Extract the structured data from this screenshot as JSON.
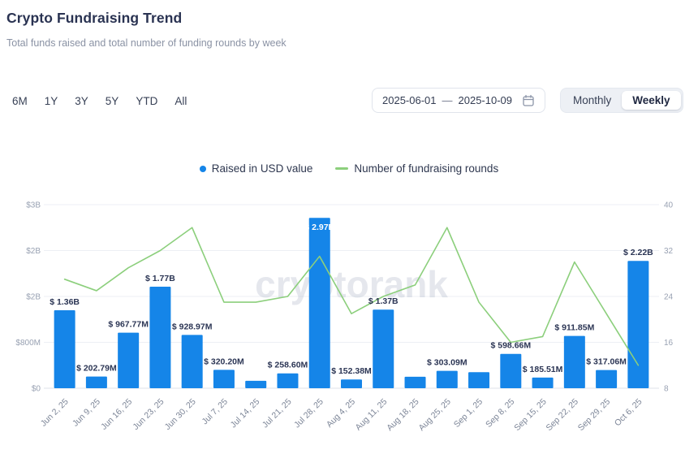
{
  "header": {
    "title": "Crypto Fundraising Trend",
    "subtitle": "Total funds raised and total number of funding rounds by week"
  },
  "controls": {
    "ranges": [
      "6M",
      "1Y",
      "3Y",
      "5Y",
      "YTD",
      "All"
    ],
    "date_range": {
      "start": "2025-06-01",
      "separator": "—",
      "end": "2025-10-09"
    },
    "granularity": {
      "options": [
        "Monthly",
        "Weekly"
      ],
      "selected": "Weekly"
    }
  },
  "legend": [
    {
      "label": "Raised in USD value",
      "color": "#1585e8"
    },
    {
      "label": "Number of fundraising rounds",
      "color": "#8ccf7c"
    }
  ],
  "watermark": {
    "text": "cryptorank",
    "color": "#aab3c5"
  },
  "chart_data": {
    "type": "bar+line dual-axis",
    "categories": [
      "Jun 2, 25",
      "Jun 9, 25",
      "Jun 16, 25",
      "Jun 23, 25",
      "Jun 30, 25",
      "Jul 7, 25",
      "Jul 14, 25",
      "Jul 21, 25",
      "Jul 28, 25",
      "Aug 4, 25",
      "Aug 11, 25",
      "Aug 18, 25",
      "Aug 25, 25",
      "Sep 1, 25",
      "Sep 8, 25",
      "Sep 15, 25",
      "Sep 22, 25",
      "Sep 29, 25",
      "Oct 6, 25"
    ],
    "series": [
      {
        "name": "Raised in USD value",
        "type": "bar",
        "axis": "left",
        "color": "#1585e8",
        "values_millions_usd": [
          1360,
          202.79,
          967.77,
          1770,
          928.97,
          320.2,
          130,
          258.6,
          2970,
          152.38,
          1370,
          200,
          303.09,
          280,
          598.66,
          185.51,
          911.85,
          317.06,
          2220
        ],
        "labels": [
          "$ 1.36B",
          "$ 202.79M",
          "$ 967.77M",
          "$ 1.77B",
          "$ 928.97M",
          "$ 320.20M",
          null,
          "$ 258.60M",
          "$ 2.97B",
          "$ 152.38M",
          "$ 1.37B",
          null,
          "$ 303.09M",
          null,
          "$ 598.66M",
          "$ 185.51M",
          "$ 911.85M",
          "$ 317.06M",
          "$ 2.22B"
        ]
      },
      {
        "name": "Number of fundraising rounds",
        "type": "line",
        "axis": "right",
        "color": "#8ccf7c",
        "values": [
          27,
          25,
          29,
          32,
          36,
          23,
          23,
          24,
          31,
          21,
          24,
          26,
          36,
          23,
          16,
          17,
          30,
          21,
          12
        ]
      }
    ],
    "left_axis": {
      "tick_labels_top_to_bottom": [
        "$3B",
        "$2B",
        "$2B",
        "$800M",
        "$0"
      ],
      "max_millions": 3200
    },
    "right_axis": {
      "ticks_top_to_bottom": [
        40,
        32,
        24,
        16,
        8
      ],
      "min": 8,
      "max": 40
    },
    "grid": "horizontal",
    "legend_position": "top-center"
  }
}
